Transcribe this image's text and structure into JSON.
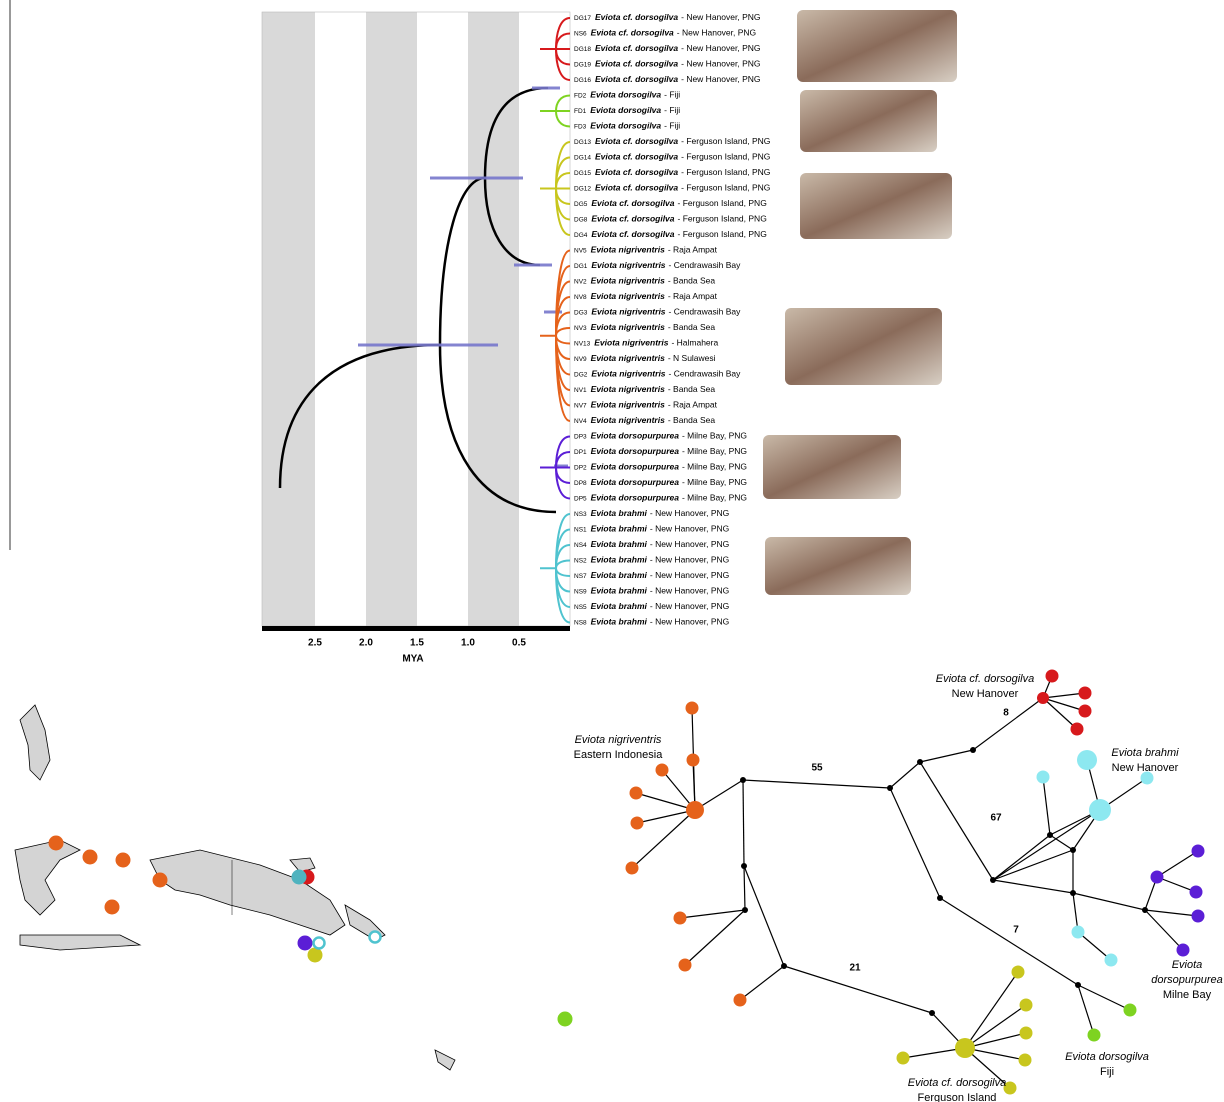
{
  "tree": {
    "axis_label": "MYA",
    "ticks": [
      "2.5",
      "2.0",
      "1.5",
      "1.0",
      "0.5"
    ],
    "leaves": [
      {
        "code": "DG17",
        "species": "Eviota cf. dorsogilva",
        "location": "- New Hanover, PNG"
      },
      {
        "code": "NS6",
        "species": "Eviota cf. dorsogilva",
        "location": "- New Hanover, PNG"
      },
      {
        "code": "DG18",
        "species": "Eviota cf. dorsogilva",
        "location": "- New Hanover, PNG"
      },
      {
        "code": "DG19",
        "species": "Eviota cf. dorsogilva",
        "location": "- New Hanover, PNG"
      },
      {
        "code": "DG16",
        "species": "Eviota cf. dorsogilva",
        "location": "- New Hanover, PNG"
      },
      {
        "code": "FD2",
        "species": "Eviota dorsogilva",
        "location": "- Fiji"
      },
      {
        "code": "FD1",
        "species": "Eviota dorsogilva",
        "location": "- Fiji"
      },
      {
        "code": "FD3",
        "species": "Eviota dorsogilva",
        "location": "- Fiji"
      },
      {
        "code": "DG13",
        "species": "Eviota cf. dorsogilva",
        "location": "- Ferguson Island, PNG"
      },
      {
        "code": "DG14",
        "species": "Eviota cf. dorsogilva",
        "location": "- Ferguson Island, PNG"
      },
      {
        "code": "DG15",
        "species": "Eviota cf. dorsogilva",
        "location": "- Ferguson Island, PNG"
      },
      {
        "code": "DG12",
        "species": "Eviota cf. dorsogilva",
        "location": "- Ferguson Island, PNG"
      },
      {
        "code": "DG5",
        "species": "Eviota cf. dorsogilva",
        "location": "- Ferguson Island, PNG"
      },
      {
        "code": "DG8",
        "species": "Eviota cf. dorsogilva",
        "location": "- Ferguson Island, PNG"
      },
      {
        "code": "DG4",
        "species": "Eviota cf. dorsogilva",
        "location": "- Ferguson Island, PNG"
      },
      {
        "code": "NV5",
        "species": "Eviota nigriventris",
        "location": "- Raja Ampat"
      },
      {
        "code": "DG1",
        "species": "Eviota nigriventris",
        "location": "- Cendrawasih Bay"
      },
      {
        "code": "NV2",
        "species": "Eviota nigriventris",
        "location": "- Banda Sea"
      },
      {
        "code": "NV8",
        "species": "Eviota nigriventris",
        "location": "- Raja Ampat"
      },
      {
        "code": "DG3",
        "species": "Eviota nigriventris",
        "location": "- Cendrawasih Bay"
      },
      {
        "code": "NV3",
        "species": "Eviota nigriventris",
        "location": "- Banda Sea"
      },
      {
        "code": "NV13",
        "species": "Eviota nigriventris",
        "location": "- Halmahera"
      },
      {
        "code": "NV9",
        "species": "Eviota nigriventris",
        "location": "- N Sulawesi"
      },
      {
        "code": "DG2",
        "species": "Eviota nigriventris",
        "location": "- Cendrawasih Bay"
      },
      {
        "code": "NV1",
        "species": "Eviota nigriventris",
        "location": "- Banda Sea"
      },
      {
        "code": "NV7",
        "species": "Eviota nigriventris",
        "location": "- Raja Ampat"
      },
      {
        "code": "NV4",
        "species": "Eviota nigriventris",
        "location": "- Banda Sea"
      },
      {
        "code": "DP3",
        "species": "Eviota dorsopurpurea",
        "location": "- Milne Bay, PNG"
      },
      {
        "code": "DP1",
        "species": "Eviota dorsopurpurea",
        "location": "- Milne Bay, PNG"
      },
      {
        "code": "DP2",
        "species": "Eviota dorsopurpurea",
        "location": "- Milne Bay, PNG"
      },
      {
        "code": "DP8",
        "species": "Eviota dorsopurpurea",
        "location": "- Milne Bay, PNG"
      },
      {
        "code": "DP5",
        "species": "Eviota dorsopurpurea",
        "location": "- Milne Bay, PNG"
      },
      {
        "code": "NS3",
        "species": "Eviota brahmi",
        "location": "- New Hanover, PNG"
      },
      {
        "code": "NS1",
        "species": "Eviota brahmi",
        "location": "- New Hanover, PNG"
      },
      {
        "code": "NS4",
        "species": "Eviota brahmi",
        "location": "- New Hanover, PNG"
      },
      {
        "code": "NS2",
        "species": "Eviota brahmi",
        "location": "- New Hanover, PNG"
      },
      {
        "code": "NS7",
        "species": "Eviota brahmi",
        "location": "- New Hanover, PNG"
      },
      {
        "code": "NS9",
        "species": "Eviota brahmi",
        "location": "- New Hanover, PNG"
      },
      {
        "code": "NS5",
        "species": "Eviota brahmi",
        "location": "- New Hanover, PNG"
      },
      {
        "code": "NS8",
        "species": "Eviota brahmi",
        "location": "- New Hanover, PNG"
      }
    ]
  },
  "network": {
    "steps": [
      "55",
      "8",
      "67",
      "7",
      "21"
    ],
    "labels": [
      {
        "lines": [
          "Eviota cf. dorsogilva",
          "New Hanover"
        ]
      },
      {
        "lines": [
          "Eviota nigriventris",
          "Eastern Indonesia"
        ]
      },
      {
        "lines": [
          "Eviota brahmi",
          "New Hanover"
        ]
      },
      {
        "lines": [
          "Eviota",
          "dorsopurpurea",
          "Milne Bay"
        ]
      },
      {
        "lines": [
          "Eviota dorsogilva",
          "Fiji"
        ]
      },
      {
        "lines": [
          "Eviota cf. dorsogilva",
          "Ferguson Island"
        ]
      }
    ]
  }
}
